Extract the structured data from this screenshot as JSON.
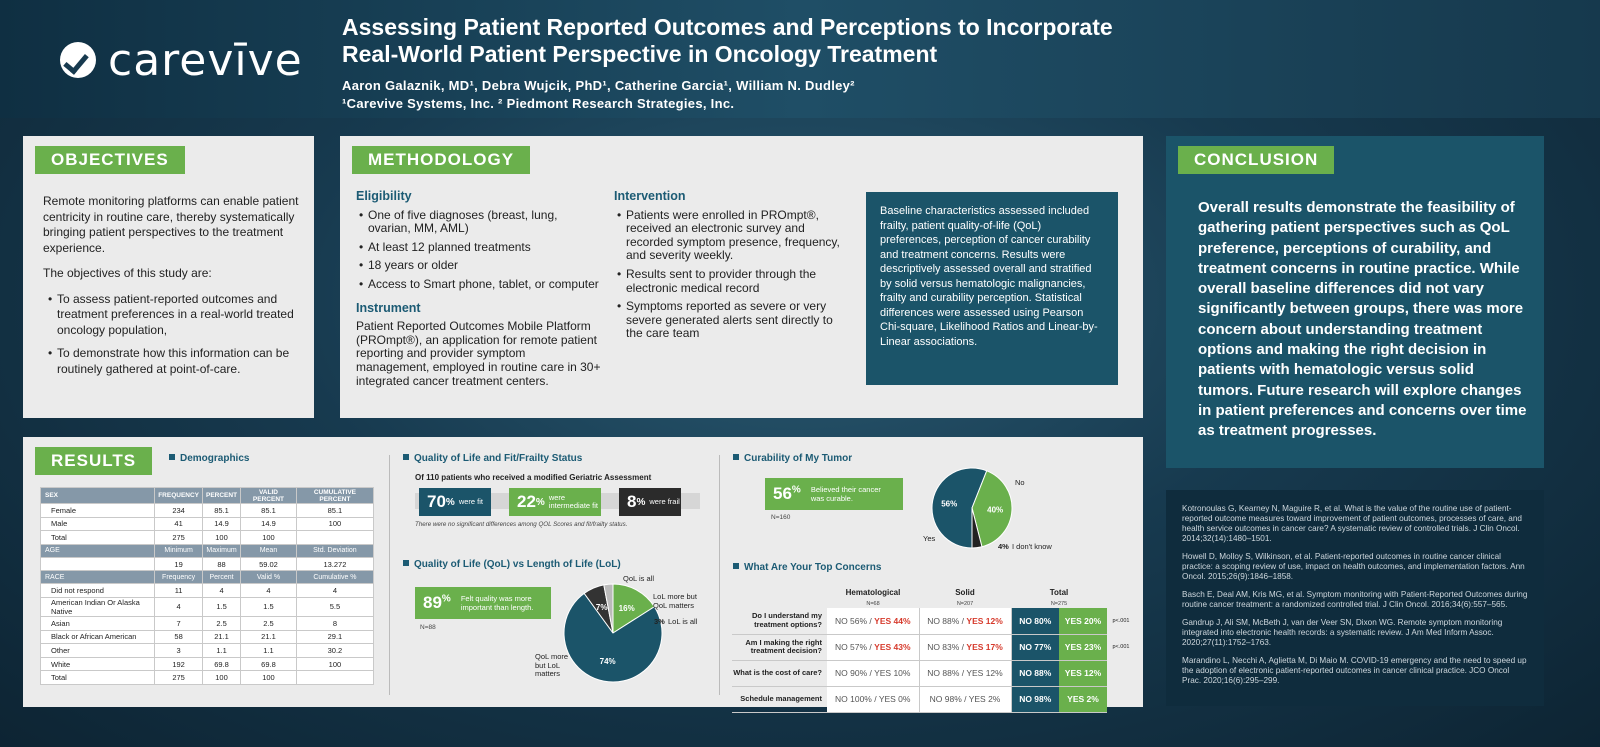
{
  "header": {
    "logo_text": "carevīve",
    "title_line1": "Assessing Patient Reported Outcomes and Perceptions to Incorporate",
    "title_line2": "Real-World Patient Perspective in Oncology Treatment",
    "authors": "Aaron Galaznik, MD¹, Debra Wujcik, PhD¹, Catherine Garcia¹, William N. Dudley²",
    "affiliations": "¹Carevive Systems, Inc. ² Piedmont Research Strategies, Inc."
  },
  "objectives": {
    "heading": "OBJECTIVES",
    "intro": "Remote monitoring platforms can enable patient centricity in routine care, thereby systematically bringing patient perspectives to the treatment experience.",
    "lead": "The objectives of this study are:",
    "items": [
      "To assess patient-reported outcomes and treatment preferences in a real-world treated oncology population,",
      "To demonstrate how this information can be routinely gathered at point-of-care."
    ]
  },
  "methodology": {
    "heading": "METHODOLOGY",
    "eligibility_h": "Eligibility",
    "eligibility": [
      "One of five diagnoses (breast, lung, ovarian, MM, AML)",
      "At least 12 planned treatments",
      "18 years or older",
      "Access to Smart phone, tablet, or computer"
    ],
    "instrument_h": "Instrument",
    "instrument": "Patient Reported Outcomes Mobile Platform (PROmpt®), an application for remote patient reporting and provider symptom management, employed in routine care in 30+ integrated cancer treatment centers.",
    "intervention_h": "Intervention",
    "intervention": [
      "Patients were enrolled in PROmpt®, received an electronic survey and recorded symptom presence, frequency, and severity weekly.",
      "Results sent to provider through the electronic medical record",
      "Symptoms reported as severe or very severe generated alerts sent directly to the care team"
    ],
    "baseline": "Baseline characteristics assessed included frailty, patient quality-of-life (QoL) preferences, perception of cancer curability and treatment concerns. Results were descriptively assessed overall and stratified by solid versus hematologic malignancies, frailty and curability perception. Statistical differences were assessed using Pearson Chi-square, Likelihood Ratios and Linear-by-Linear associations."
  },
  "conclusion": {
    "heading": "CONCLUSION",
    "text": "Overall results demonstrate the feasibility of gathering patient perspectives such as QoL preference, perceptions of curability, and treatment concerns in routine practice. While overall baseline differences did not vary significantly between groups, there was more concern about understanding treatment options and making the right decision in patients with hematologic versus solid tumors. Future research will explore changes in patient preferences and concerns over time as treatment  progresses."
  },
  "references": [
    "Kotronoulas G, Kearney N, Maguire R, et al. What is the value of the routine use of patient-reported outcome measures toward improvement of patient outcomes, processes of care, and health service outcomes in cancer care? A systematic review of controlled trials. J Clin Oncol. 2014;32(14):1480–1501.",
    "Howell D, Molloy S, Wilkinson, et al. Patient-reported outcomes in routine cancer clinical practice: a scoping review of use, impact on health outcomes, and implementation factors. Ann Oncol. 2015;26(9):1846–1858.",
    "Basch E, Deal AM, Kris MG, et al. Symptom monitoring with Patient-Reported Outcomes during routine cancer treatment: a randomized controlled trial. J Clin Oncol. 2016;34(6):557–565.",
    "Gandrup J, Ali SM, McBeth J, van der Veer SN, Dixon WG. Remote symptom monitoring integrated into electronic health records: a systematic review. J Am Med Inform Assoc. 2020;27(11):1752–1763.",
    "Marandino L, Necchi A, Aglietta M, Di Maio M. COVID-19 emergency and the need to speed up the adoption of electronic patient-reported outcomes in cancer clinical practice. JCO Oncol Prac. 2020;16(6):295–299."
  ],
  "results": {
    "heading": "RESULTS",
    "demographics_h": "Demographics",
    "demo_table": {
      "sex_header": [
        "SEX",
        "FREQUENCY",
        "PERCENT",
        "VALID PERCENT",
        "CUMULATIVE PERCENT"
      ],
      "sex_rows": [
        [
          "Female",
          "234",
          "85.1",
          "85.1",
          "85.1"
        ],
        [
          "Male",
          "41",
          "14.9",
          "14.9",
          "100"
        ],
        [
          "Total",
          "275",
          "100",
          "100",
          ""
        ]
      ],
      "age_header": [
        "AGE",
        "Minimum",
        "Maximum",
        "Mean",
        "Std. Deviation"
      ],
      "age_rows": [
        [
          "",
          "19",
          "88",
          "59.02",
          "13.272"
        ]
      ],
      "race_header": [
        "RACE",
        "Frequency",
        "Percent",
        "Valid %",
        "Cumulative %"
      ],
      "race_rows": [
        [
          "Did not respond",
          "11",
          "4",
          "4",
          "4"
        ],
        [
          "American Indian Or Alaska Native",
          "4",
          "1.5",
          "1.5",
          "5.5"
        ],
        [
          "Asian",
          "7",
          "2.5",
          "2.5",
          "8"
        ],
        [
          "Black or African American",
          "58",
          "21.1",
          "21.1",
          "29.1"
        ],
        [
          "Other",
          "3",
          "1.1",
          "1.1",
          "30.2"
        ],
        [
          "White",
          "192",
          "69.8",
          "69.8",
          "100"
        ],
        [
          "Total",
          "275",
          "100",
          "100",
          ""
        ]
      ]
    },
    "frailty": {
      "heading": "Quality of Life and Fit/Frailty Status",
      "subheading": "Of 110 patients who received a modified Geriatric Assessment",
      "fit_num": "70",
      "fit_label": "were fit",
      "inter_num": "22",
      "inter_label": "were intermediate fit",
      "frail_num": "8",
      "frail_label": "were frail",
      "pct_sign": "%",
      "note": "There were no significant differences among QOL Scores and fit/frailty status.",
      "colors": {
        "fit": "#1b5469",
        "intermediate": "#6ab04c",
        "frail": "#2b2b2b"
      }
    },
    "qol_lol": {
      "heading": "Quality of Life (QoL) vs Length of Life (LoL)",
      "big": "89",
      "pct_sign": "%",
      "text": "Felt quality was more important than length.",
      "n": "N=88",
      "label_qol_all": "QoL is all",
      "label_qol_more": "LoL more but QoL matters",
      "label_lol_all_pct": "3%",
      "label_lol_all": "LoL is all",
      "label_lol_more": "QoL more but LoL matters"
    },
    "curability": {
      "heading": "Curability of My Tumor",
      "big": "56",
      "pct_sign": "%",
      "text": "Believed their cancer was curable.",
      "n": "N=160",
      "label_no": "No",
      "label_yes": "Yes",
      "label_dk_pct": "4%",
      "label_dk": "I don't know"
    },
    "concerns": {
      "heading": "What Are Your Top Concerns",
      "col_heme": "Hematological",
      "col_solid": "Solid",
      "col_total": "Total",
      "n_heme": "N=68",
      "n_solid": "N=207",
      "n_total": "N=275",
      "rows": [
        {
          "q": "Do I understand my treatment options?",
          "heme_no": "NO 56%",
          "heme_yes": "YES 44%",
          "solid_no": "NO 88%",
          "solid_yes": "YES 12%",
          "tot_no": "NO 80%",
          "tot_yes": "YES 20%",
          "p": "p<.001",
          "heme_red": true,
          "solid_red": true
        },
        {
          "q": "Am I making the right treatment decision?",
          "heme_no": "NO 57%",
          "heme_yes": "YES 43%",
          "solid_no": "NO 83%",
          "solid_yes": "YES 17%",
          "tot_no": "NO 77%",
          "tot_yes": "YES 23%",
          "p": "p<.001",
          "heme_red": true,
          "solid_red": true
        },
        {
          "q": "What is the cost of care?",
          "heme_no": "NO 90%",
          "heme_yes": "YES 10%",
          "solid_no": "NO 88%",
          "solid_yes": "YES 12%",
          "tot_no": "NO 88%",
          "tot_yes": "YES 12%",
          "p": "",
          "heme_red": false,
          "solid_red": false
        },
        {
          "q": "Schedule management",
          "heme_no": "NO 100%",
          "heme_yes": "YES 0%",
          "solid_no": "NO 98%",
          "solid_yes": "YES 2%",
          "tot_no": "NO 98%",
          "tot_yes": "YES 2%",
          "p": "",
          "heme_red": false,
          "solid_red": false
        }
      ]
    }
  },
  "chart_data": [
    {
      "type": "pie",
      "categories": [
        "QoL is all",
        "QoL more but LoL matters",
        "LoL more but QoL matters",
        "LoL is all"
      ],
      "values": [
        16,
        74,
        7,
        3
      ],
      "data_labels": [
        "16%",
        "74%",
        "7%",
        "3%"
      ],
      "colors": [
        "#6ab04c",
        "#1b5469",
        "#333333",
        "#bbbbbb"
      ]
    },
    {
      "type": "pie",
      "categories": [
        "Yes",
        "No",
        "I don't know"
      ],
      "values": [
        56,
        40,
        4
      ],
      "data_labels": [
        "56%",
        "40%",
        "4%"
      ],
      "colors": [
        "#1b5469",
        "#6ab04c",
        "#222222"
      ]
    }
  ]
}
